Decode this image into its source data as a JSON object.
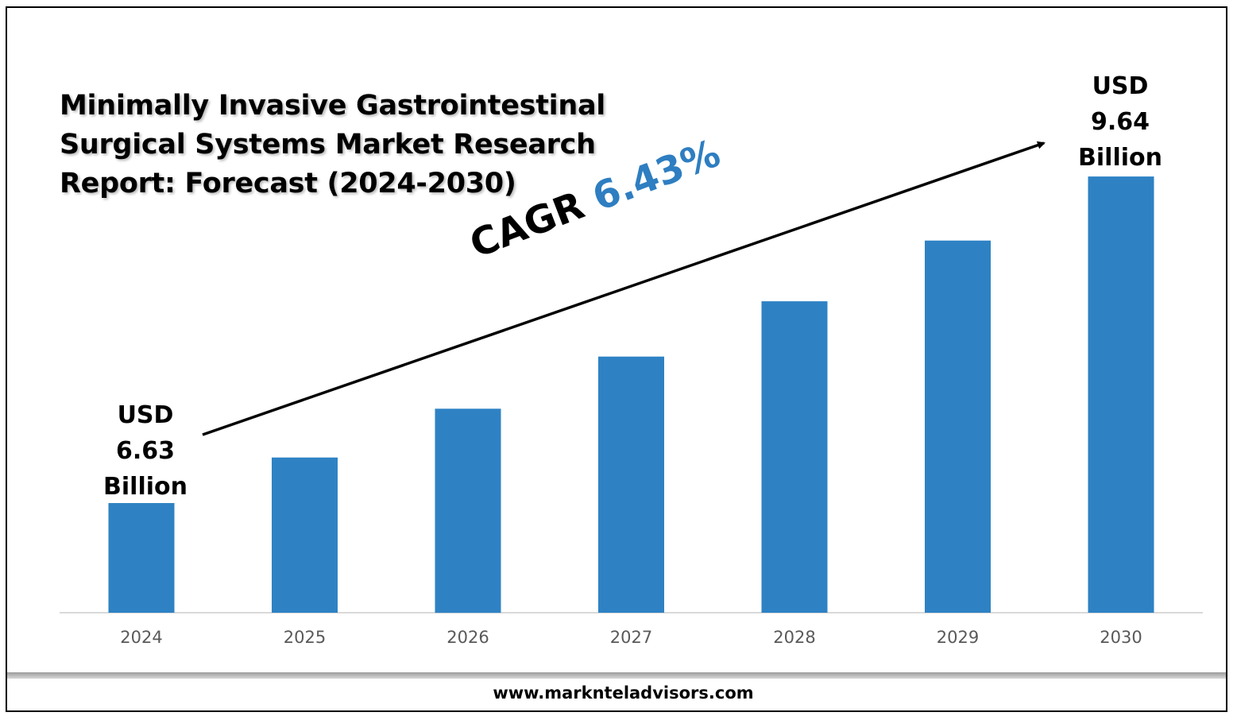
{
  "chart_data": {
    "type": "bar",
    "title_lines": [
      "Minimally Invasive Gastrointestinal",
      "Surgical Systems Market Research",
      "Report: Forecast (2024-2030)"
    ],
    "categories": [
      "2024",
      "2025",
      "2026",
      "2027",
      "2028",
      "2029",
      "2030"
    ],
    "values": [
      6.63,
      7.05,
      7.5,
      7.98,
      8.49,
      9.05,
      9.64
    ],
    "unit": "USD Billion",
    "bar_color": "#2e82c4",
    "start_label": {
      "currency": "USD",
      "value": "6.63",
      "unit": "Billion"
    },
    "end_label": {
      "currency": "USD",
      "value": "9.64",
      "unit": "Billion"
    },
    "cagr": {
      "label": "CAGR",
      "value": "6.43%",
      "value_color": "#2e7ec1"
    },
    "grid": false,
    "legend": "none"
  },
  "footer": {
    "url": "www.marknteladvisors.com"
  }
}
